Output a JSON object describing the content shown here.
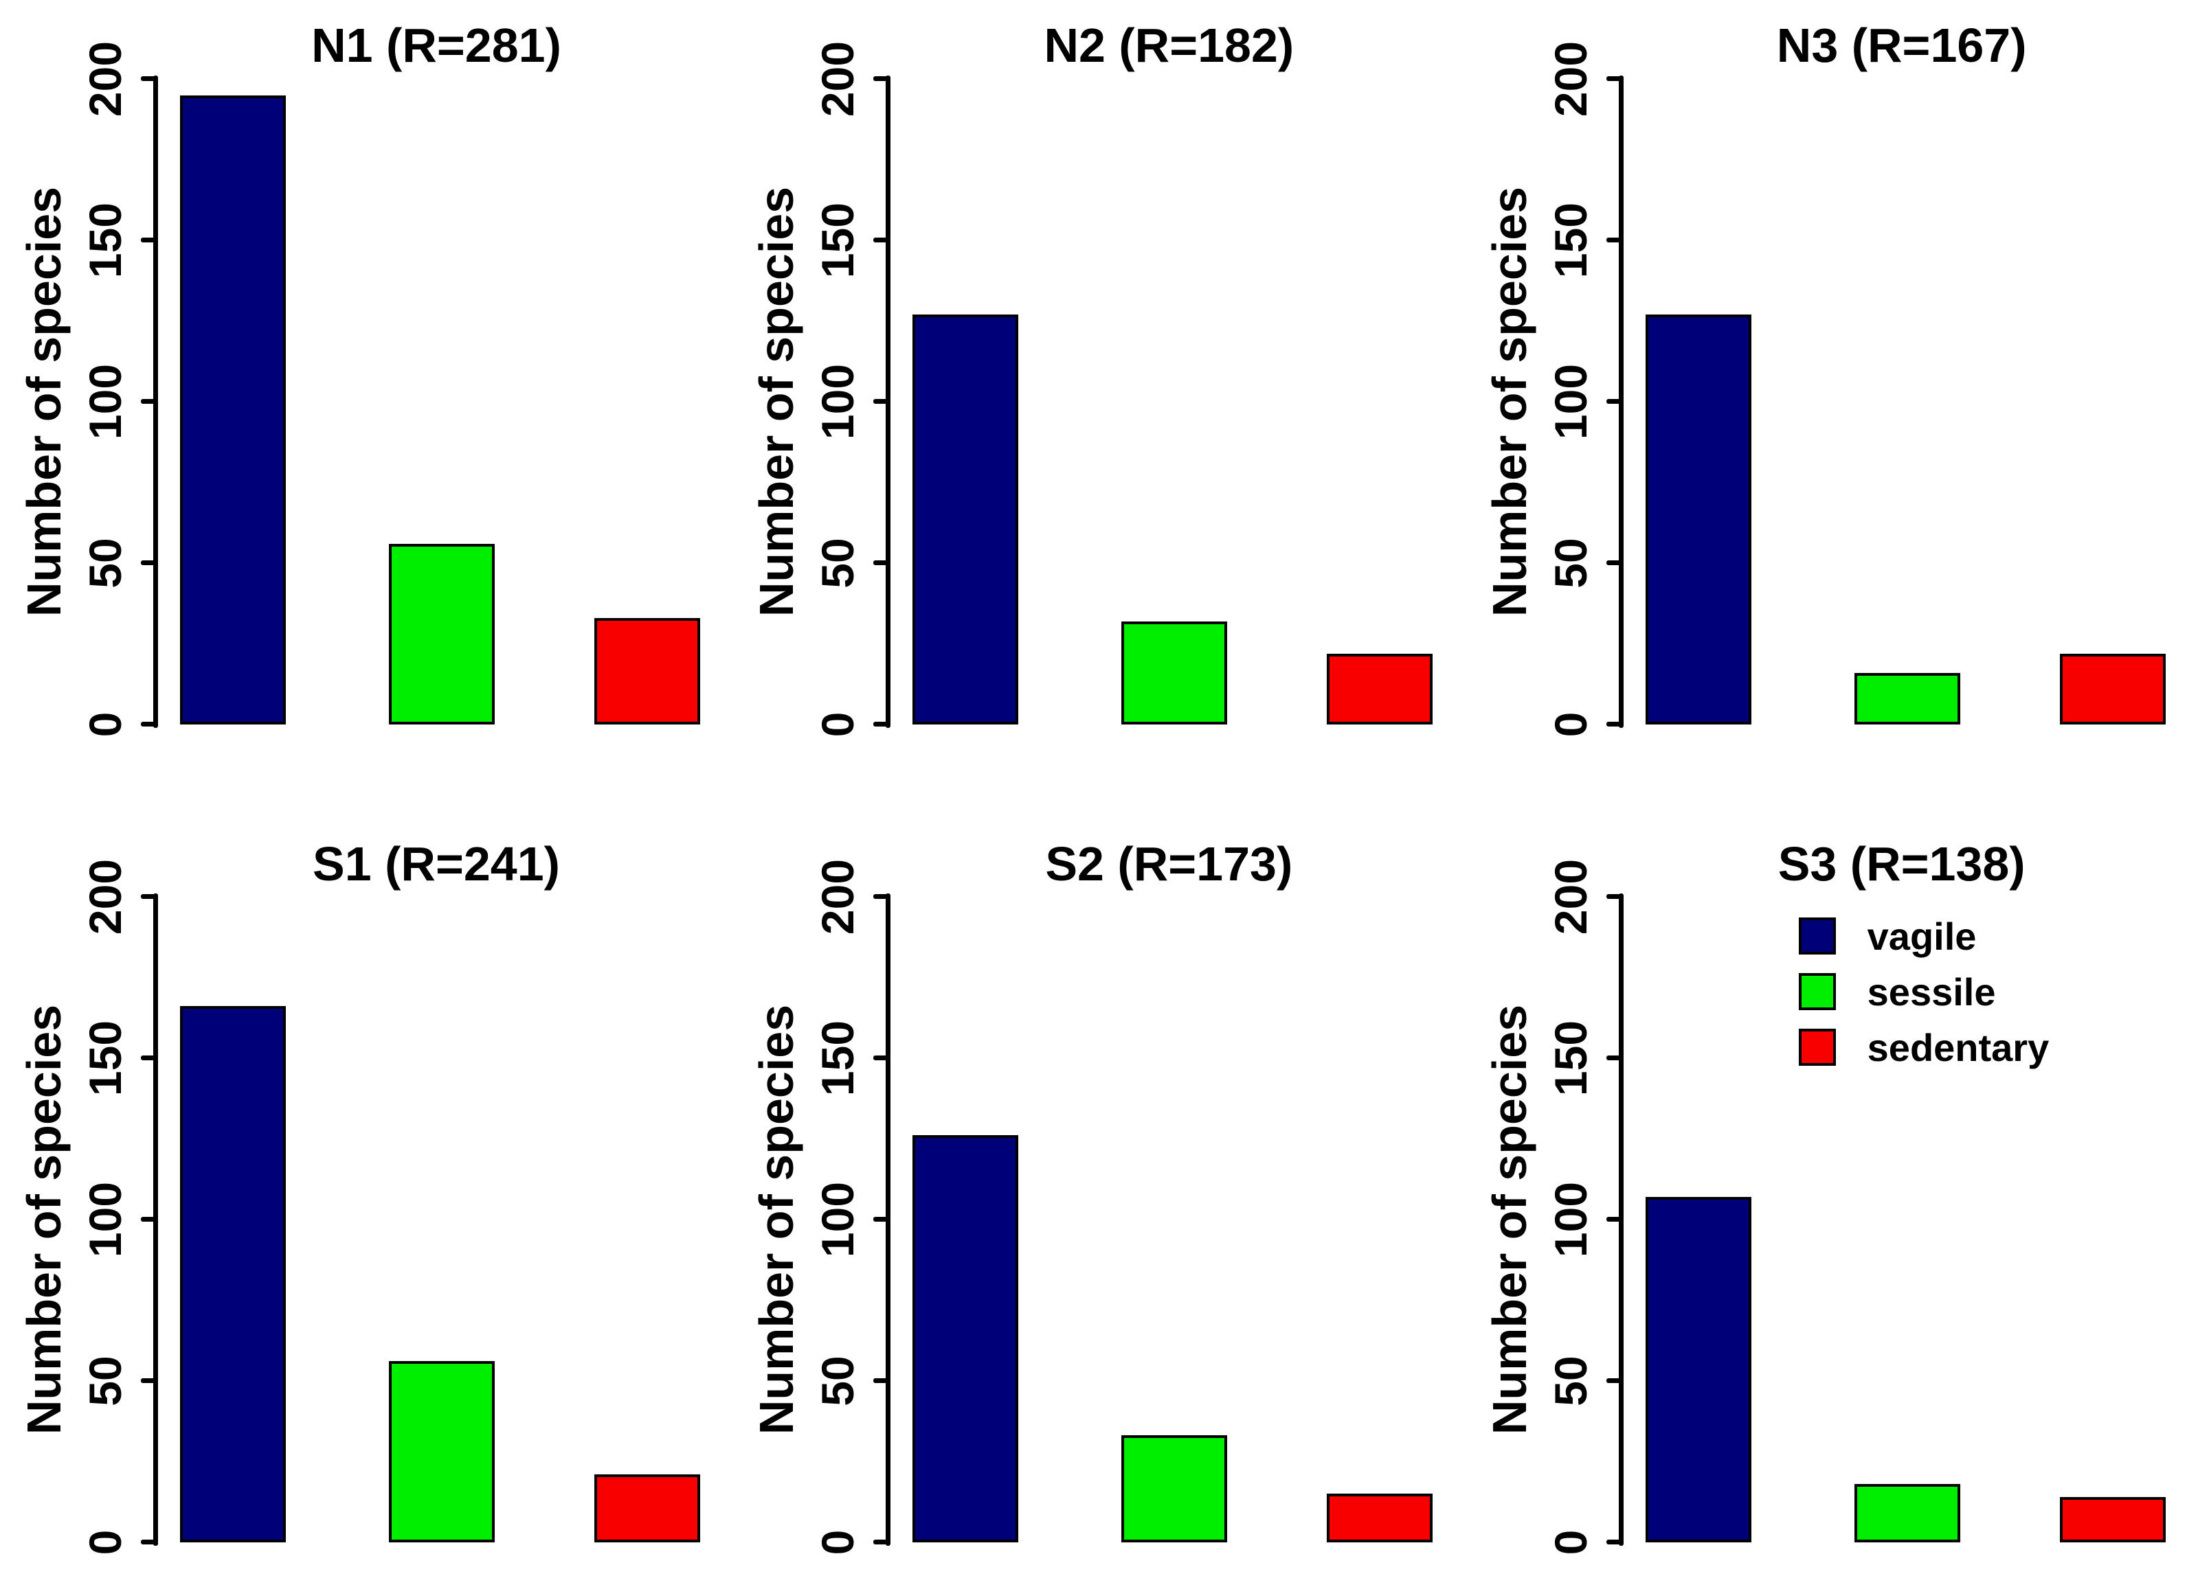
{
  "chart_data": {
    "type": "bar",
    "layout": "2x3 panel grid (small multiples)",
    "ylabel": "Number of species",
    "ylim": [
      0,
      200
    ],
    "yticks": [
      0,
      50,
      100,
      150,
      200
    ],
    "grid": false,
    "x_axis_labels": "none (bars identified by color legend)",
    "categories": [
      "vagile",
      "sessile",
      "sedentary"
    ],
    "colors": {
      "vagile": "#000078",
      "sessile": "#00ee00",
      "sedentary": "#f80000"
    },
    "panels": [
      {
        "site": "N1",
        "richness": 281,
        "title": "N1 (R=281)",
        "values": [
          195,
          56,
          33
        ]
      },
      {
        "site": "N2",
        "richness": 182,
        "title": "N2 (R=182)",
        "values": [
          127,
          32,
          22
        ]
      },
      {
        "site": "N3",
        "richness": 167,
        "title": "N3 (R=167)",
        "values": [
          127,
          16,
          22
        ]
      },
      {
        "site": "S1",
        "richness": 241,
        "title": "S1 (R=241)",
        "values": [
          166,
          56,
          21
        ]
      },
      {
        "site": "S2",
        "richness": 173,
        "title": "S2 (R=173)",
        "values": [
          126,
          33,
          15
        ]
      },
      {
        "site": "S3",
        "richness": 138,
        "title": "S3 (R=138)",
        "values": [
          107,
          18,
          14
        ]
      }
    ],
    "legend": {
      "position": "top area of last panel (S3)",
      "entries": [
        {
          "label": "vagile",
          "color": "#000078"
        },
        {
          "label": "sessile",
          "color": "#00ee00"
        },
        {
          "label": "sedentary",
          "color": "#f80000"
        }
      ]
    }
  }
}
